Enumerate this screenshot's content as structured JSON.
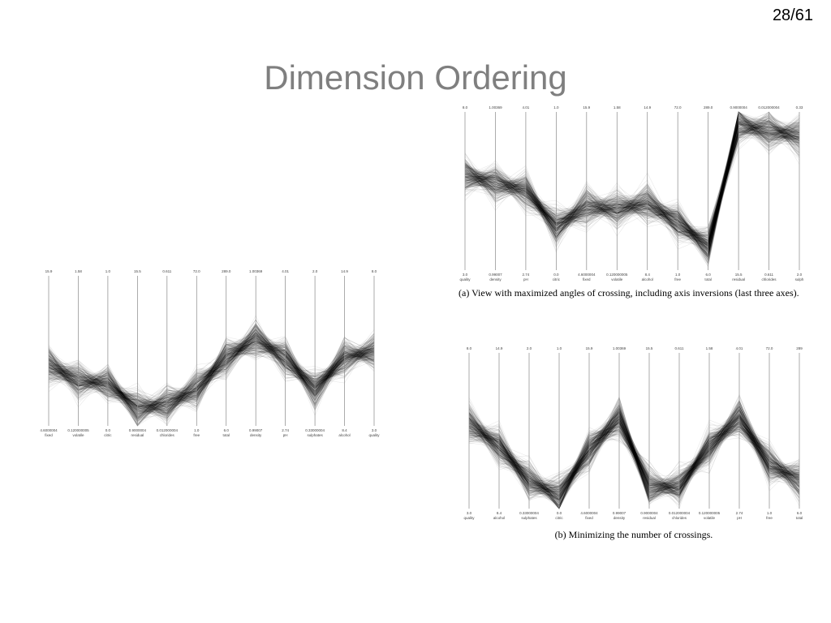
{
  "page_number": "28/61",
  "title": "Dimension Ordering",
  "figures": [
    {
      "axes": [
        {
          "name": "fixed",
          "top": "15.9",
          "bottom": "4.6000004"
        },
        {
          "name": "volatile",
          "top": "1.58",
          "bottom": "0.120000005"
        },
        {
          "name": "citric",
          "top": "1.0",
          "bottom": "0.0"
        },
        {
          "name": "residual",
          "top": "15.5",
          "bottom": "0.9000004"
        },
        {
          "name": "chlorides",
          "top": "0.611",
          "bottom": "0.012000004"
        },
        {
          "name": "free",
          "top": "72.0",
          "bottom": "1.0"
        },
        {
          "name": "total",
          "top": "289.0",
          "bottom": "6.0"
        },
        {
          "name": "density",
          "top": "1.00369",
          "bottom": "0.99007"
        },
        {
          "name": "pH",
          "top": "4.01",
          "bottom": "2.74"
        },
        {
          "name": "sulphates",
          "top": "2.0",
          "bottom": "0.33000004"
        },
        {
          "name": "alcohol",
          "top": "14.9",
          "bottom": "8.4"
        },
        {
          "name": "quality",
          "top": "8.0",
          "bottom": "3.0"
        }
      ]
    },
    {
      "axes": [
        {
          "name": "quality",
          "top": "8.0",
          "bottom": "3.0"
        },
        {
          "name": "density",
          "top": "1.00369",
          "bottom": "0.99007"
        },
        {
          "name": "pH",
          "top": "4.01",
          "bottom": "2.74"
        },
        {
          "name": "citric",
          "top": "1.0",
          "bottom": "0.0"
        },
        {
          "name": "fixed",
          "top": "15.9",
          "bottom": "4.6000004"
        },
        {
          "name": "volatile",
          "top": "1.58",
          "bottom": "0.120000005"
        },
        {
          "name": "alcohol",
          "top": "14.9",
          "bottom": "8.4"
        },
        {
          "name": "free",
          "top": "72.0",
          "bottom": "1.0"
        },
        {
          "name": "total",
          "top": "289.0",
          "bottom": "6.0"
        },
        {
          "name": "residual",
          "top": "0.9000004",
          "bottom": "15.5"
        },
        {
          "name": "chlorides",
          "top": "0.012000004",
          "bottom": "0.611"
        },
        {
          "name": "sulph",
          "top": "0.33",
          "bottom": "2.0"
        }
      ],
      "caption": "(a) View with maximized angles of crossing, including axis inversions (last three axes)."
    },
    {
      "axes": [
        {
          "name": "quality",
          "top": "8.0",
          "bottom": "3.0"
        },
        {
          "name": "alcohol",
          "top": "14.9",
          "bottom": "8.4"
        },
        {
          "name": "sulphates",
          "top": "2.0",
          "bottom": "0.33000004"
        },
        {
          "name": "citric",
          "top": "1.0",
          "bottom": "0.0"
        },
        {
          "name": "fixed",
          "top": "15.9",
          "bottom": "4.6000004"
        },
        {
          "name": "density",
          "top": "1.00369",
          "bottom": "0.99007"
        },
        {
          "name": "residual",
          "top": "15.5",
          "bottom": "0.9000004"
        },
        {
          "name": "chlorides",
          "top": "0.611",
          "bottom": "0.012000004"
        },
        {
          "name": "volatile",
          "top": "1.58",
          "bottom": "0.120000005"
        },
        {
          "name": "pH",
          "top": "4.01",
          "bottom": "2.74"
        },
        {
          "name": "free",
          "top": "72.0",
          "bottom": "1.0"
        },
        {
          "name": "total",
          "top": "289",
          "bottom": "6.0"
        }
      ],
      "caption": "(b) Minimizing the number of crossings."
    }
  ]
}
